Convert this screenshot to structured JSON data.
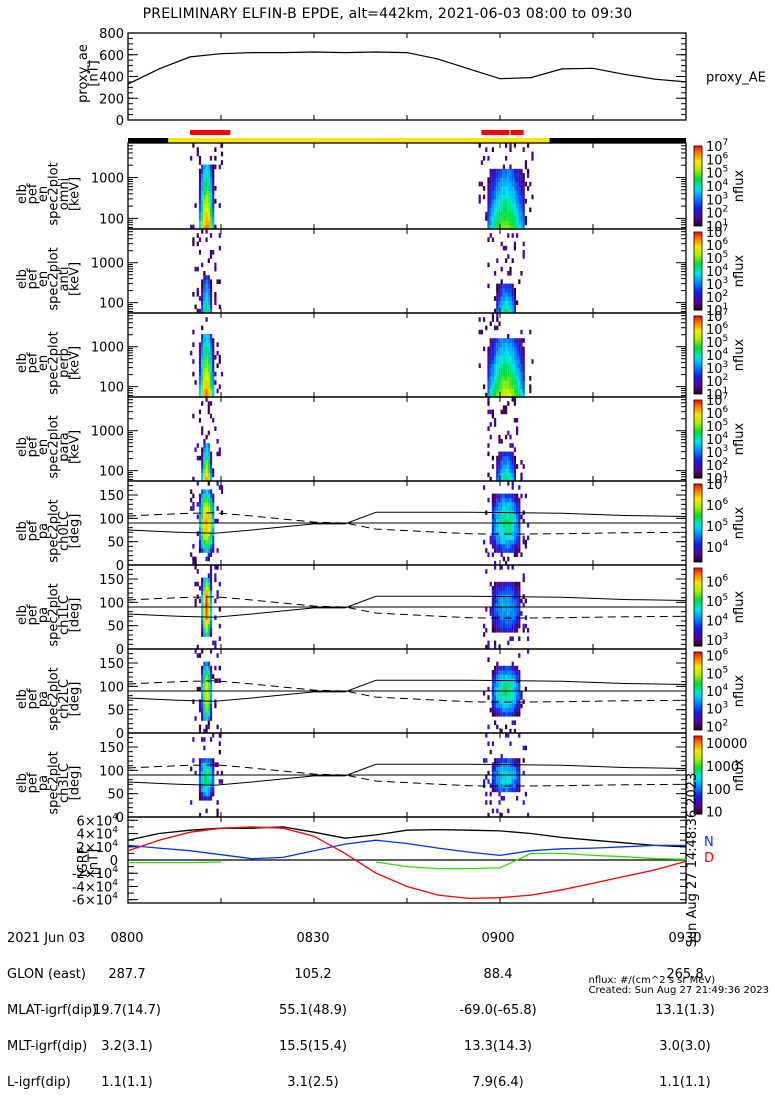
{
  "title": "PRELIMINARY ELFIN-B EPDE, alt=442km, 2021-06-03 08:00 to 09:30",
  "colors": {
    "black": "#000000",
    "status_yellow": "#ffe800",
    "status_red": "#ff0000",
    "N_blue": "#0033ff",
    "D_red": "#ff0000",
    "green": "#33dd00"
  },
  "chart_data": [
    {
      "type": "line",
      "name": "proxy_ae",
      "ylabel": "proxy_ae",
      "yunit": "[nT]",
      "legend": "proxy_AE",
      "ylim": [
        0,
        800
      ],
      "yticks": [
        "0",
        "200",
        "400",
        "600",
        "800"
      ],
      "ytick_values": [
        0,
        200,
        400,
        600,
        800
      ],
      "x_minutes": [
        0,
        5,
        10,
        15,
        20,
        25,
        30,
        35,
        40,
        45,
        50,
        55,
        60,
        65,
        70,
        75,
        80,
        85,
        90
      ],
      "values": [
        330,
        470,
        580,
        610,
        620,
        620,
        625,
        620,
        625,
        620,
        560,
        470,
        380,
        390,
        470,
        475,
        420,
        375,
        350
      ]
    },
    {
      "type": "bar",
      "name": "status_bar",
      "segments": [
        {
          "start": 0,
          "end": 6.5,
          "color": "#000000"
        },
        {
          "start": 6.5,
          "end": 68,
          "color": "#ffe800"
        },
        {
          "start": 68,
          "end": 90,
          "color": "#000000"
        }
      ],
      "red_segments": [
        {
          "start": 10,
          "end": 16.5
        },
        {
          "start": 57,
          "end": 61.5
        },
        {
          "start": 61.7,
          "end": 63.8
        }
      ]
    },
    {
      "type": "heatmap",
      "name": "spec-omni",
      "ylabel_lines": [
        "elb",
        "pef",
        "en",
        "spec2plot",
        "omni",
        "[keV]"
      ],
      "yscale": "log",
      "yticks": [
        "100",
        "1000"
      ],
      "ytick_values": [
        100,
        1000
      ],
      "ylim": [
        55,
        7000
      ],
      "colorbar": {
        "label": "nflux",
        "ticks": [
          "10",
          "10",
          "10",
          "10",
          "10",
          "10",
          "10"
        ],
        "exps": [
          "1",
          "2",
          "3",
          "4",
          "5",
          "6",
          "7"
        ],
        "range_exp": [
          1,
          7
        ]
      },
      "events": [
        {
          "t": 12.5,
          "width": 1.2,
          "emax": 2000,
          "peak": 6.5
        },
        {
          "t": 60.8,
          "width": 3,
          "emax": 1500,
          "peak": 5.0
        }
      ]
    },
    {
      "type": "heatmap",
      "name": "spec-anti",
      "ylabel_lines": [
        "elb",
        "pef",
        "en",
        "spec2plot",
        "anti",
        "[keV]"
      ],
      "yscale": "log",
      "yticks": [
        "100",
        "1000"
      ],
      "ytick_values": [
        100,
        1000
      ],
      "ylim": [
        55,
        7000
      ],
      "colorbar": {
        "label": "nflux",
        "ticks": [
          "10",
          "10",
          "10",
          "10",
          "10",
          "10",
          "10"
        ],
        "exps": [
          "1",
          "2",
          "3",
          "4",
          "5",
          "6",
          "7"
        ],
        "range_exp": [
          1,
          7
        ]
      },
      "events": [
        {
          "t": 12.5,
          "width": 0.6,
          "emax": 400,
          "peak": 4.5
        },
        {
          "t": 60.8,
          "width": 1.5,
          "emax": 250,
          "peak": 4.2
        }
      ]
    },
    {
      "type": "heatmap",
      "name": "spec-perp",
      "ylabel_lines": [
        "elb",
        "pef",
        "en",
        "spec2plot",
        "perp",
        "[keV]"
      ],
      "yscale": "log",
      "yticks": [
        "100",
        "1000"
      ],
      "ytick_values": [
        100,
        1000
      ],
      "ylim": [
        55,
        7000
      ],
      "colorbar": {
        "label": "nflux",
        "ticks": [
          "10",
          "10",
          "10",
          "10",
          "10",
          "10",
          "10"
        ],
        "exps": [
          "1",
          "2",
          "3",
          "4",
          "5",
          "6",
          "7"
        ],
        "range_exp": [
          1,
          7
        ]
      },
      "events": [
        {
          "t": 12.5,
          "width": 1.2,
          "emax": 2000,
          "peak": 6.5
        },
        {
          "t": 60.8,
          "width": 3,
          "emax": 1500,
          "peak": 5.5
        }
      ]
    },
    {
      "type": "heatmap",
      "name": "spec-para",
      "ylabel_lines": [
        "elb",
        "pef",
        "en",
        "spec2plot",
        "para",
        "[keV]"
      ],
      "yscale": "log",
      "yticks": [
        "100",
        "1000"
      ],
      "ytick_values": [
        100,
        1000
      ],
      "ylim": [
        55,
        7000
      ],
      "colorbar": {
        "label": "nflux",
        "ticks": [
          "10",
          "10",
          "10",
          "10",
          "10",
          "10",
          "10"
        ],
        "exps": [
          "1",
          "2",
          "3",
          "4",
          "5",
          "6",
          "7"
        ],
        "range_exp": [
          1,
          7
        ]
      },
      "events": [
        {
          "t": 12.5,
          "width": 0.6,
          "emax": 400,
          "peak": 6.2
        },
        {
          "t": 60.8,
          "width": 1.5,
          "emax": 250,
          "peak": 4.2
        }
      ]
    },
    {
      "type": "heatmap",
      "name": "pa-ch0LC",
      "ylabel_lines": [
        "elb",
        "pef",
        "pa",
        "spec2plot",
        "ch0LC",
        "[deg]"
      ],
      "yticks": [
        "0",
        "50",
        "100",
        "150"
      ],
      "ytick_values": [
        0,
        50,
        100,
        150
      ],
      "ylim": [
        0,
        180
      ],
      "colorbar": {
        "label": "nflux",
        "ticks": [
          "10",
          "10",
          "10",
          "10"
        ],
        "exps": [
          "4",
          "5",
          "6",
          "7"
        ],
        "range_exp": [
          3.3,
          7
        ]
      },
      "events": [
        {
          "t": 12.5,
          "width": 1.0,
          "pa_lo": 25,
          "pa_hi": 160,
          "peak": 6.5
        },
        {
          "t": 60.8,
          "width": 2.2,
          "pa_lo": 30,
          "pa_hi": 150,
          "peak": 5.3
        }
      ]
    },
    {
      "type": "heatmap",
      "name": "pa-ch1LC",
      "ylabel_lines": [
        "elb",
        "pef",
        "pa",
        "spec2plot",
        "ch1LC",
        "[deg]"
      ],
      "yticks": [
        "0",
        "50",
        "100",
        "150"
      ],
      "ytick_values": [
        0,
        50,
        100,
        150
      ],
      "ylim": [
        0,
        180
      ],
      "colorbar": {
        "label": "nflux",
        "ticks": [
          "10",
          "10",
          "10",
          "10"
        ],
        "exps": [
          "3",
          "4",
          "5",
          "6"
        ],
        "range_exp": [
          2.7,
          6.7
        ]
      },
      "events": [
        {
          "t": 12.5,
          "width": 0.7,
          "pa_lo": 25,
          "pa_hi": 155,
          "peak": 6.5
        },
        {
          "t": 60.8,
          "width": 2.0,
          "pa_lo": 40,
          "pa_hi": 140,
          "peak": 4.3
        }
      ]
    },
    {
      "type": "heatmap",
      "name": "pa-ch2LC",
      "ylabel_lines": [
        "elb",
        "pef",
        "pa",
        "spec2plot",
        "ch2LC",
        "[deg]"
      ],
      "yticks": [
        "0",
        "50",
        "100",
        "150"
      ],
      "ytick_values": [
        0,
        50,
        100,
        150
      ],
      "ylim": [
        0,
        180
      ],
      "colorbar": {
        "label": "nflux",
        "ticks": [
          "10",
          "10",
          "10",
          "10",
          "10"
        ],
        "exps": [
          "2",
          "3",
          "4",
          "5",
          "6"
        ],
        "range_exp": [
          1.8,
          6.2
        ]
      },
      "events": [
        {
          "t": 12.5,
          "width": 0.8,
          "pa_lo": 25,
          "pa_hi": 150,
          "peak": 5.2
        },
        {
          "t": 60.8,
          "width": 2.0,
          "pa_lo": 40,
          "pa_hi": 140,
          "peak": 4.2
        }
      ]
    },
    {
      "type": "heatmap",
      "name": "pa-ch3LC",
      "ylabel_lines": [
        "elb",
        "pef",
        "pa",
        "spec2plot",
        "ch3LC",
        "[deg]"
      ],
      "yticks": [
        "0",
        "50",
        "100",
        "150"
      ],
      "ytick_values": [
        0,
        50,
        100,
        150
      ],
      "ylim": [
        0,
        180
      ],
      "colorbar": {
        "label": "nflux",
        "ticks": [
          "10",
          "100",
          "1000",
          "10000"
        ],
        "range_lin_exp": [
          0.9,
          4.3
        ]
      },
      "events": [
        {
          "t": 12.5,
          "width": 1.0,
          "pa_lo": 40,
          "pa_hi": 130,
          "peak": 2.8
        },
        {
          "t": 60.8,
          "width": 2.0,
          "pa_lo": 50,
          "pa_hi": 125,
          "peak": 2.5
        }
      ]
    },
    {
      "type": "line",
      "name": "igrf",
      "ylabel": "IGRF",
      "yunit": "[nT]",
      "ylim": [
        -65000,
        65000
      ],
      "yticks": [
        "-6×10",
        "-4×10",
        "-2×10",
        "0",
        "2×10",
        "4×10",
        "6×10"
      ],
      "ytick_exp": "4",
      "ytick_values": [
        -60000,
        -40000,
        -20000,
        0,
        20000,
        40000,
        60000
      ],
      "x_minutes": [
        0,
        5,
        10,
        15,
        20,
        25,
        30,
        35,
        40,
        45,
        50,
        55,
        60,
        65,
        70,
        75,
        80,
        85,
        90
      ],
      "series": [
        {
          "name": "total",
          "color": "#000000",
          "values": [
            30000,
            40000,
            45000,
            48000,
            48000,
            50000,
            42000,
            33000,
            38000,
            45000,
            46000,
            45000,
            44000,
            40000,
            34000,
            30000,
            26000,
            22000,
            20000
          ]
        },
        {
          "name": "N",
          "color": "#0033ff",
          "values": [
            22000,
            18000,
            14000,
            8000,
            2000,
            4000,
            14000,
            24000,
            30000,
            25000,
            18000,
            12000,
            7000,
            14000,
            17000,
            18000,
            20000,
            22000,
            22000
          ]
        },
        {
          "name": "D",
          "color": "#ff0000",
          "values": [
            14000,
            30000,
            42000,
            48000,
            50000,
            48000,
            36000,
            10000,
            -20000,
            -40000,
            -53000,
            -58000,
            -57000,
            -53000,
            -45000,
            -35000,
            -25000,
            -15000,
            -2000
          ]
        },
        {
          "name": "Z",
          "color": "#33dd00",
          "values": [
            -4000,
            -4000,
            -4000,
            -3000,
            null,
            null,
            null,
            null,
            -3000,
            -10000,
            -13000,
            -13000,
            -12000,
            10000,
            10000,
            7000,
            5000,
            2000,
            1000
          ]
        }
      ],
      "legend": [
        "N",
        "D"
      ]
    }
  ],
  "time_axis": {
    "ticks_minutes": [
      0,
      30,
      60,
      90
    ],
    "rows": [
      {
        "label": "2021 Jun 03",
        "values": [
          "0800",
          "0830",
          "0900",
          "0930"
        ]
      },
      {
        "label": "GLON (east)",
        "values": [
          "287.7",
          "105.2",
          "88.4",
          "265.8"
        ]
      },
      {
        "label": "MLAT-igrf(dip)",
        "values": [
          "19.7(14.7)",
          "55.1(48.9)",
          "-69.0(-65.8)",
          "13.1(1.3)"
        ]
      },
      {
        "label": "MLT-igrf(dip)",
        "values": [
          "3.2(3.1)",
          "15.5(15.4)",
          "13.3(14.3)",
          "3.0(3.0)"
        ]
      },
      {
        "label": "L-igrf(dip)",
        "values": [
          "1.1(1.1)",
          "3.1(2.5)",
          "7.9(6.4)",
          "1.1(1.1)"
        ]
      }
    ]
  },
  "side_stamp": "Sun Aug 27 14:48:36 2023",
  "footer": {
    "units": "nflux: #/(cm^2 s sr MeV)",
    "created": "Created: Sun Aug 27 21:49:36 2023"
  }
}
